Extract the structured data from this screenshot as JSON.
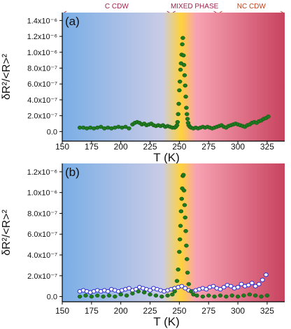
{
  "phase_header": {
    "regions": [
      {
        "label": "C CDW",
        "from": 150,
        "to": 243,
        "color": "#a0204a"
      },
      {
        "label": "MIXED PHASE",
        "from": 243,
        "to": 283,
        "color": "#a0204a"
      },
      {
        "label": "NC CDW",
        "from": 283,
        "to": 340,
        "color": "#c0401a"
      }
    ]
  },
  "chart_data": [
    {
      "type": "scatter",
      "panel_label": "(a)",
      "xlabel": "T (K)",
      "ylabel": "δR²/<R>²",
      "xlim": [
        150,
        340
      ],
      "ylim": [
        -1.2e-07,
        1.5e-06
      ],
      "xticks": [
        150,
        175,
        200,
        225,
        250,
        275,
        300,
        325
      ],
      "yticks": [
        0,
        2e-07,
        4e-07,
        6e-07,
        8e-07,
        1e-06,
        1.2e-06,
        1.4e-06
      ],
      "ytick_labels": [
        "0.0",
        "2.0x10⁻⁷",
        "4.0x10⁻⁷",
        "6.0x10⁻⁷",
        "8.0x10⁻⁷",
        "1.0x10⁻⁶",
        "1.2x10⁻⁶",
        "1.4x10⁻⁶"
      ],
      "background_colors": [
        "#7aaee6",
        "#c9cbe6",
        "#ffd23a",
        "#f7a3b3",
        "#c8435f"
      ],
      "series": [
        {
          "color": "#1f7a1f",
          "marker": "circle",
          "x": [
            165,
            168,
            171,
            174,
            177,
            180,
            183,
            186,
            189,
            192,
            195,
            198,
            201,
            204,
            207,
            210,
            212,
            214,
            216,
            218,
            220,
            222,
            224,
            226,
            228,
            230,
            232,
            234,
            236,
            238,
            240,
            242,
            244,
            246,
            247,
            248,
            248.5,
            249,
            249.5,
            250,
            250.5,
            251,
            251.5,
            252,
            252.5,
            253,
            253.5,
            254,
            254.5,
            255,
            255.5,
            256,
            256.5,
            257,
            257.5,
            258,
            259,
            260,
            262,
            264,
            266,
            268,
            270,
            272,
            274,
            276,
            278,
            280,
            282,
            284,
            286,
            288,
            290,
            292,
            294,
            296,
            298,
            300,
            302,
            304,
            306,
            308,
            310,
            312,
            314,
            316,
            318,
            320,
            322,
            324,
            326
          ],
          "y": [
            5e-08,
            5e-08,
            4e-08,
            5e-08,
            4e-08,
            5e-08,
            6e-08,
            4e-08,
            5e-08,
            4e-08,
            5e-08,
            6e-08,
            5e-08,
            6e-08,
            4e-08,
            9e-08,
            1.1e-07,
            1.2e-07,
            1.1e-07,
            9e-08,
            1e-07,
            8e-08,
            9e-08,
            1e-07,
            8e-08,
            7e-08,
            8e-08,
            7e-08,
            8e-08,
            6e-08,
            7e-08,
            6e-08,
            5e-08,
            5e-08,
            6e-08,
            8e-08,
            1.2e-07,
            2.2e-07,
            3.5e-07,
            5.2e-07,
            6.3e-07,
            7.8e-07,
            8.6e-07,
            9.7e-07,
            1.1e-06,
            1.18e-06,
            9.6e-07,
            8.4e-07,
            7.1e-07,
            5.8e-07,
            4.4e-07,
            3e-07,
            2.2e-07,
            1.6e-07,
            1.1e-07,
            8e-08,
            6e-08,
            5e-08,
            4e-08,
            5e-08,
            4e-08,
            5e-08,
            6e-08,
            5e-08,
            6e-08,
            5e-08,
            4e-08,
            5e-08,
            6e-08,
            7e-08,
            8e-08,
            6e-08,
            5e-08,
            7e-08,
            8e-08,
            9e-08,
            1e-07,
            9e-08,
            8e-08,
            7e-08,
            6e-08,
            8e-08,
            9e-08,
            1.1e-07,
            1.2e-07,
            1.1e-07,
            1.3e-07,
            1.4e-07,
            1.6e-07,
            1.7e-07,
            1.9e-07
          ]
        }
      ]
    },
    {
      "type": "scatter",
      "panel_label": "(b)",
      "xlabel": "T (K)",
      "ylabel": "δR²/<R>²",
      "xlim": [
        150,
        340
      ],
      "ylim": [
        -5e-08,
        1.28e-06
      ],
      "xticks": [
        150,
        175,
        200,
        225,
        250,
        275,
        300,
        325
      ],
      "yticks": [
        0,
        2e-07,
        4e-07,
        6e-07,
        8e-07,
        1e-06,
        1.2e-06
      ],
      "ytick_labels": [
        "0.0",
        "2.0x10⁻⁷",
        "4.0x10⁻⁷",
        "6.0x10⁻⁷",
        "8.0x10⁻⁷",
        "1.0x10⁻⁶",
        "1.2x10⁻⁶"
      ],
      "background_colors": [
        "#7aaee6",
        "#c9cbe6",
        "#ffd23a",
        "#f7a3b3",
        "#c8435f"
      ],
      "series": [
        {
          "color": "#2a2ad4",
          "marker": "open-circle",
          "x": [
            165,
            168,
            171,
            174,
            177,
            180,
            183,
            186,
            189,
            192,
            195,
            198,
            201,
            204,
            207,
            210,
            213,
            216,
            219,
            222,
            225,
            228,
            231,
            234,
            237,
            240,
            243,
            246,
            249,
            252,
            255,
            258,
            261,
            264,
            267,
            270,
            273,
            276,
            279,
            282,
            285,
            288,
            291,
            294,
            297,
            300,
            303,
            306,
            309,
            312,
            315,
            318,
            321,
            324
          ],
          "y": [
            5e-08,
            6e-08,
            5e-08,
            4e-08,
            5e-08,
            6e-08,
            5e-08,
            6e-08,
            5e-08,
            7e-08,
            6e-08,
            5e-08,
            6e-08,
            7e-08,
            8e-08,
            6e-08,
            7e-08,
            9e-08,
            8e-08,
            7e-08,
            6e-08,
            8e-08,
            7e-08,
            6e-08,
            5e-08,
            6e-08,
            7e-08,
            8e-08,
            9e-08,
            1e-07,
            8e-08,
            6e-08,
            5e-08,
            6e-08,
            7e-08,
            8e-08,
            7e-08,
            9e-08,
            1e-07,
            8e-08,
            7e-08,
            9e-08,
            1.1e-07,
            1e-07,
            8e-08,
            9e-08,
            1.2e-07,
            1e-07,
            1.1e-07,
            1.3e-07,
            1e-07,
            1.2e-07,
            1.6e-07,
            2.1e-07
          ]
        },
        {
          "color": "#1f7a1f",
          "marker": "circle",
          "x": [
            165,
            170,
            175,
            180,
            185,
            190,
            195,
            200,
            205,
            210,
            215,
            220,
            225,
            230,
            235,
            240,
            244,
            246,
            248,
            249,
            250,
            250.5,
            251,
            251.5,
            252,
            252.5,
            253,
            253.5,
            254,
            254.5,
            255,
            255.5,
            256,
            256.5,
            257,
            258,
            260,
            262,
            265,
            270,
            275,
            280,
            285,
            290,
            295,
            300,
            305,
            310,
            315,
            320,
            325
          ],
          "y": [
            0,
            1e-08,
            0,
            1e-08,
            0,
            1e-08,
            0,
            2e-08,
            1e-08,
            3e-08,
            5e-08,
            4e-08,
            2e-08,
            1e-08,
            0,
            1e-08,
            2e-08,
            5e-08,
            1.5e-07,
            2.6e-07,
            4.3e-07,
            5.5e-07,
            6.8e-07,
            8.2e-07,
            9.4e-07,
            1.04e-06,
            1.16e-06,
            1.17e-06,
            1.02e-06,
            8.8e-07,
            7.6e-07,
            6.3e-07,
            4.9e-07,
            3.6e-07,
            2.3e-07,
            1.2e-07,
            5e-08,
            2e-08,
            1e-08,
            0,
            1e-08,
            0,
            1e-08,
            0,
            1e-08,
            0,
            1e-08,
            2e-08,
            1e-08,
            0,
            1e-08
          ]
        }
      ]
    }
  ]
}
